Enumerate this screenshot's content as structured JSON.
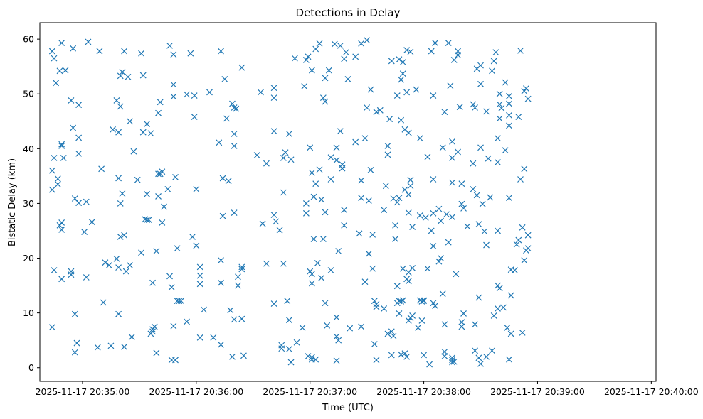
{
  "chart_data": {
    "type": "scatter",
    "title": "Detections in Delay",
    "xlabel": "Time (UTC)",
    "ylabel": "Bistatic Delay (km)",
    "x_ticks": [
      {
        "t": 0,
        "label": "2025-11-17 20:35:00"
      },
      {
        "t": 60,
        "label": "2025-11-17 20:36:00"
      },
      {
        "t": 120,
        "label": "2025-11-17 20:37:00"
      },
      {
        "t": 180,
        "label": "2025-11-17 20:38:00"
      },
      {
        "t": 240,
        "label": "2025-11-17 20:39:00"
      },
      {
        "t": 300,
        "label": "2025-11-17 20:40:00"
      }
    ],
    "y_ticks": [
      0,
      10,
      20,
      30,
      40,
      50,
      60
    ],
    "xlim": [
      -22.5,
      302.5
    ],
    "ylim": [
      -2.5,
      63
    ],
    "marker": "x",
    "color": "#1f77b4",
    "grid": false,
    "x_time_start": "2025-11-17 20:35:00",
    "points": [
      [
        -16,
        57.8
      ],
      [
        -15,
        56.5
      ],
      [
        -14,
        52
      ],
      [
        -12,
        54.2
      ],
      [
        -11,
        59.3
      ],
      [
        -9,
        54.3
      ],
      [
        -16,
        36
      ],
      [
        -15,
        38.3
      ],
      [
        -13,
        34.5
      ],
      [
        -13,
        33.5
      ],
      [
        -16,
        32.5
      ],
      [
        -12,
        26
      ],
      [
        -11,
        26.5
      ],
      [
        -11,
        25.2
      ],
      [
        -11,
        40.5
      ],
      [
        -11,
        40.8
      ],
      [
        -10,
        38.3
      ],
      [
        -15,
        17.8
      ],
      [
        -11,
        16.2
      ],
      [
        -16,
        7.4
      ],
      [
        -5,
        58.3
      ],
      [
        -6,
        48.8
      ],
      [
        -5,
        43.8
      ],
      [
        -2,
        48
      ],
      [
        -2,
        42
      ],
      [
        -2,
        39.1
      ],
      [
        -6,
        17.6
      ],
      [
        -6,
        17
      ],
      [
        -4,
        9.8
      ],
      [
        -3,
        4.5
      ],
      [
        -4,
        2.8
      ],
      [
        3,
        59.5
      ],
      [
        9,
        57.8
      ],
      [
        -4,
        30.9
      ],
      [
        -2,
        30.1
      ],
      [
        2,
        30.3
      ],
      [
        5,
        26.6
      ],
      [
        1,
        24.8
      ],
      [
        2,
        16.5
      ],
      [
        8,
        3.7
      ],
      [
        10,
        36.3
      ],
      [
        11,
        11.9
      ],
      [
        12,
        19.2
      ],
      [
        14,
        18.7
      ],
      [
        15,
        4
      ],
      [
        16,
        43.5
      ],
      [
        22,
        57.8
      ],
      [
        20,
        53.3
      ],
      [
        21,
        54
      ],
      [
        24,
        53.1
      ],
      [
        18,
        48.8
      ],
      [
        20,
        47.7
      ],
      [
        19,
        43
      ],
      [
        19,
        34.6
      ],
      [
        21,
        31.8
      ],
      [
        20,
        30
      ],
      [
        20,
        23.9
      ],
      [
        22,
        24.2
      ],
      [
        18,
        19.9
      ],
      [
        19,
        18.3
      ],
      [
        23,
        17.6
      ],
      [
        19,
        9.8
      ],
      [
        22,
        3.8
      ],
      [
        25,
        18.7
      ],
      [
        26,
        5.6
      ],
      [
        31,
        57.4
      ],
      [
        32,
        53.4
      ],
      [
        25,
        45
      ],
      [
        27,
        39.5
      ],
      [
        29,
        34.3
      ],
      [
        34,
        44.5
      ],
      [
        32,
        43
      ],
      [
        36,
        42.8
      ],
      [
        33,
        27.1
      ],
      [
        34,
        27
      ],
      [
        35,
        27
      ],
      [
        34,
        31.7
      ],
      [
        31,
        21
      ],
      [
        37,
        15.5
      ],
      [
        39,
        21.3
      ],
      [
        36,
        6.2
      ],
      [
        37,
        7
      ],
      [
        38,
        7.5
      ],
      [
        37,
        6.6
      ],
      [
        39,
        2.7
      ],
      [
        41,
        35.4
      ],
      [
        42,
        35.8
      ],
      [
        40,
        35.4
      ],
      [
        40,
        31.3
      ],
      [
        42,
        26.5
      ],
      [
        43,
        29.4
      ],
      [
        40,
        46.5
      ],
      [
        41,
        48.5
      ],
      [
        46,
        58.8
      ],
      [
        48,
        57.2
      ],
      [
        48,
        51.7
      ],
      [
        48,
        49.5
      ],
      [
        45,
        32.6
      ],
      [
        49,
        34.8
      ],
      [
        46,
        16.7
      ],
      [
        47,
        14.7
      ],
      [
        48,
        7.6
      ],
      [
        47,
        1.4
      ],
      [
        49,
        1.4
      ],
      [
        50,
        21.8
      ],
      [
        50,
        12.2
      ],
      [
        51,
        12.2
      ],
      [
        52,
        12.2
      ],
      [
        55,
        49.9
      ],
      [
        59,
        49.7
      ],
      [
        57,
        57.4
      ],
      [
        59,
        45.8
      ],
      [
        60,
        32.6
      ],
      [
        58,
        23.9
      ],
      [
        60,
        22.3
      ],
      [
        55,
        8.4
      ],
      [
        62,
        18.4
      ],
      [
        62,
        16.8
      ],
      [
        62,
        15.3
      ],
      [
        64,
        10.6
      ],
      [
        62,
        5.5
      ],
      [
        67,
        50.3
      ],
      [
        73,
        57.8
      ],
      [
        75,
        52.7
      ],
      [
        72,
        41.1
      ],
      [
        73,
        19.6
      ],
      [
        73,
        15.5
      ],
      [
        73,
        4.2
      ],
      [
        69,
        5.5
      ],
      [
        76,
        45.5
      ],
      [
        77,
        34.1
      ],
      [
        74,
        34.6
      ],
      [
        74,
        27.7
      ],
      [
        79,
        48.2
      ],
      [
        80,
        47.5
      ],
      [
        81,
        47.3
      ],
      [
        78,
        10.5
      ],
      [
        80,
        8.8
      ],
      [
        82,
        16.6
      ],
      [
        82,
        15
      ],
      [
        84,
        8.9
      ],
      [
        84,
        18.4
      ],
      [
        84,
        18
      ],
      [
        80,
        42.7
      ],
      [
        80,
        40.5
      ],
      [
        80,
        28.3
      ],
      [
        79,
        2
      ],
      [
        85,
        2.2
      ],
      [
        84,
        54.8
      ],
      [
        92,
        38.8
      ],
      [
        94,
        50.3
      ],
      [
        95,
        26.3
      ],
      [
        97,
        19
      ],
      [
        97,
        37.3
      ],
      [
        101,
        49.3
      ],
      [
        101,
        51.1
      ],
      [
        101,
        43.2
      ],
      [
        101,
        27.9
      ],
      [
        102,
        26.7
      ],
      [
        104,
        25.1
      ],
      [
        101,
        11.7
      ],
      [
        106,
        38.3
      ],
      [
        107,
        39.3
      ],
      [
        106,
        32
      ],
      [
        106,
        19
      ],
      [
        108,
        12.2
      ],
      [
        105,
        4.1
      ],
      [
        105,
        3.5
      ],
      [
        109,
        3.4
      ],
      [
        112,
        56.5
      ],
      [
        109,
        42.7
      ],
      [
        110,
        38
      ],
      [
        109,
        8.7
      ],
      [
        110,
        1
      ],
      [
        118,
        56.2
      ],
      [
        119,
        56.8
      ],
      [
        121,
        54.3
      ],
      [
        123,
        58.2
      ],
      [
        125,
        59.2
      ],
      [
        117,
        51.4
      ],
      [
        120,
        40.2
      ],
      [
        121,
        35.6
      ],
      [
        123,
        33.6
      ],
      [
        125,
        36.2
      ],
      [
        118,
        30
      ],
      [
        118,
        28.2
      ],
      [
        122,
        31.2
      ],
      [
        126,
        30.7
      ],
      [
        128,
        28.4
      ],
      [
        122,
        23.5
      ],
      [
        127,
        23.5
      ],
      [
        113,
        4.6
      ],
      [
        116,
        7.3
      ],
      [
        120,
        17.6
      ],
      [
        121,
        15.4
      ],
      [
        121,
        17.1
      ],
      [
        124,
        19.1
      ],
      [
        126,
        16.4
      ],
      [
        119,
        2.1
      ],
      [
        121,
        1.5
      ],
      [
        123,
        1.5
      ],
      [
        121,
        1.9
      ],
      [
        127,
        49.3
      ],
      [
        128,
        48.6
      ],
      [
        128,
        52.9
      ],
      [
        130,
        54.3
      ],
      [
        133,
        59.1
      ],
      [
        136,
        58.8
      ],
      [
        138,
        56.4
      ],
      [
        139,
        57.6
      ],
      [
        131,
        38.4
      ],
      [
        131,
        34.4
      ],
      [
        134,
        40.2
      ],
      [
        134,
        37.9
      ],
      [
        136,
        43.2
      ],
      [
        137,
        36.4
      ],
      [
        137,
        37.1
      ],
      [
        138,
        28.8
      ],
      [
        138,
        26
      ],
      [
        131,
        17.8
      ],
      [
        135,
        21.3
      ],
      [
        128,
        11.8
      ],
      [
        129,
        7.7
      ],
      [
        134,
        9.2
      ],
      [
        134,
        5.7
      ],
      [
        135,
        5
      ],
      [
        134,
        1.3
      ],
      [
        140,
        52.7
      ],
      [
        144,
        56.8
      ],
      [
        147,
        59.2
      ],
      [
        150,
        59.8
      ],
      [
        144,
        41.2
      ],
      [
        149,
        41.9
      ],
      [
        150,
        47.5
      ],
      [
        152,
        50.8
      ],
      [
        147,
        34.2
      ],
      [
        147,
        31
      ],
      [
        151,
        30.5
      ],
      [
        152,
        36.1
      ],
      [
        146,
        24.5
      ],
      [
        151,
        20.8
      ],
      [
        153,
        24.3
      ],
      [
        149,
        15.7
      ],
      [
        153,
        18.1
      ],
      [
        154,
        12.2
      ],
      [
        155,
        11.1
      ],
      [
        155,
        11.6
      ],
      [
        154,
        4.3
      ],
      [
        155,
        1.4
      ],
      [
        147,
        7.5
      ],
      [
        141,
        7.2
      ],
      [
        155,
        46.7
      ],
      [
        157,
        47
      ],
      [
        160,
        33.2
      ],
      [
        159,
        28.8
      ],
      [
        161,
        40.5
      ],
      [
        161,
        38.9
      ],
      [
        162,
        45.4
      ],
      [
        159,
        10.8
      ],
      [
        161,
        6.2
      ],
      [
        163,
        6.6
      ],
      [
        163,
        2.3
      ],
      [
        164,
        5.8
      ],
      [
        164,
        30.9
      ],
      [
        163,
        56
      ],
      [
        167,
        56.3
      ],
      [
        169,
        55.8
      ],
      [
        166,
        49.7
      ],
      [
        169,
        53.7
      ],
      [
        168,
        52.6
      ],
      [
        168,
        45.2
      ],
      [
        167,
        31
      ],
      [
        166,
        30.2
      ],
      [
        165,
        26
      ],
      [
        165,
        23.5
      ],
      [
        166,
        14.9
      ],
      [
        166,
        11.8
      ],
      [
        167,
        12.2
      ],
      [
        167,
        9.9
      ],
      [
        168,
        12.1
      ],
      [
        169,
        12.3
      ],
      [
        168,
        2.4
      ],
      [
        171,
        58
      ],
      [
        173,
        57.7
      ],
      [
        171,
        50.3
      ],
      [
        170,
        43.5
      ],
      [
        172,
        42.9
      ],
      [
        170,
        32.5
      ],
      [
        172,
        31.6
      ],
      [
        172,
        28.3
      ],
      [
        173,
        33.2
      ],
      [
        173,
        34.3
      ],
      [
        172,
        17.4
      ],
      [
        169,
        18.1
      ],
      [
        171,
        16.2
      ],
      [
        174,
        25.7
      ],
      [
        174,
        18.2
      ],
      [
        172,
        15.8
      ],
      [
        172,
        8.6
      ],
      [
        174,
        9.5
      ],
      [
        173,
        9.1
      ],
      [
        170,
        2.6
      ],
      [
        171,
        2
      ],
      [
        176,
        50.8
      ],
      [
        178,
        41.9
      ],
      [
        178,
        27.8
      ],
      [
        178,
        12.3
      ],
      [
        179,
        12.1
      ],
      [
        180,
        12.3
      ],
      [
        180,
        12.2
      ],
      [
        177,
        7.3
      ],
      [
        179,
        8.6
      ],
      [
        180,
        2.3
      ],
      [
        181,
        27.4
      ],
      [
        182,
        38.5
      ],
      [
        182,
        18.1
      ],
      [
        184,
        57.8
      ],
      [
        185,
        49.7
      ],
      [
        186,
        59.3
      ],
      [
        185,
        34.4
      ],
      [
        185,
        28.2
      ],
      [
        184,
        25
      ],
      [
        185,
        22.2
      ],
      [
        185,
        11.8
      ],
      [
        186,
        11.3
      ],
      [
        183,
        0.6
      ],
      [
        190,
        40.2
      ],
      [
        189,
        26.8
      ],
      [
        188,
        29
      ],
      [
        188,
        19.4
      ],
      [
        189,
        20
      ],
      [
        190,
        13.5
      ],
      [
        191,
        7.9
      ],
      [
        191,
        2.9
      ],
      [
        191,
        2.1
      ],
      [
        191,
        46.7
      ],
      [
        193,
        22.9
      ],
      [
        193,
        59.3
      ],
      [
        194,
        51.5
      ],
      [
        196,
        56.2
      ],
      [
        198,
        57.1
      ],
      [
        198,
        57.8
      ],
      [
        195,
        41.3
      ],
      [
        195,
        38.3
      ],
      [
        198,
        39.4
      ],
      [
        195,
        33.8
      ],
      [
        195,
        27.5
      ],
      [
        192,
        28
      ],
      [
        197,
        17.1
      ],
      [
        199,
        47.6
      ],
      [
        195,
        1.8
      ],
      [
        195,
        1
      ],
      [
        196,
        1.1
      ],
      [
        195,
        1.4
      ],
      [
        200,
        33.6
      ],
      [
        200,
        29.9
      ],
      [
        201,
        29.1
      ],
      [
        201,
        9.9
      ],
      [
        200,
        8.3
      ],
      [
        200,
        7.5
      ],
      [
        203,
        25.8
      ],
      [
        206,
        48.1
      ],
      [
        207,
        47.5
      ],
      [
        206,
        37.3
      ],
      [
        206,
        32.6
      ],
      [
        208,
        31.5
      ],
      [
        209,
        26.2
      ],
      [
        212,
        24.9
      ],
      [
        207,
        7.9
      ],
      [
        207,
        3.1
      ],
      [
        209,
        1.8
      ],
      [
        210,
        0.7
      ],
      [
        211,
        29.9
      ],
      [
        208,
        54.6
      ],
      [
        210,
        55.2
      ],
      [
        210,
        51.8
      ],
      [
        210,
        40.2
      ],
      [
        213,
        46.8
      ],
      [
        214,
        38.2
      ],
      [
        215,
        31.1
      ],
      [
        213,
        22.4
      ],
      [
        209,
        12.8
      ],
      [
        213,
        2
      ],
      [
        216,
        3.1
      ],
      [
        216,
        54.2
      ],
      [
        217,
        56
      ],
      [
        218,
        57.6
      ],
      [
        219,
        41.9
      ],
      [
        219,
        37.5
      ],
      [
        220,
        50
      ],
      [
        220,
        48.1
      ],
      [
        221,
        47.4
      ],
      [
        220,
        45.5
      ],
      [
        217,
        9.5
      ],
      [
        219,
        10.8
      ],
      [
        219,
        25
      ],
      [
        219,
        15
      ],
      [
        220,
        14.5
      ],
      [
        222,
        11
      ],
      [
        223,
        39.7
      ],
      [
        223,
        52.1
      ],
      [
        225,
        46.1
      ],
      [
        225,
        48.2
      ],
      [
        225,
        49.6
      ],
      [
        225,
        44.2
      ],
      [
        225,
        31
      ],
      [
        224,
        7.3
      ],
      [
        225,
        1.5
      ],
      [
        226,
        13.2
      ],
      [
        226,
        6.2
      ],
      [
        226,
        17.9
      ],
      [
        228,
        17.8
      ],
      [
        229,
        22.5
      ],
      [
        230,
        23.3
      ],
      [
        231,
        34.4
      ],
      [
        232,
        25.6
      ],
      [
        230,
        45.8
      ],
      [
        231,
        57.9
      ],
      [
        232,
        6.4
      ],
      [
        233,
        19.6
      ],
      [
        233,
        50.5
      ],
      [
        234,
        51
      ],
      [
        235,
        49.1
      ],
      [
        233,
        36.3
      ],
      [
        234,
        21.4
      ],
      [
        235,
        24.2
      ],
      [
        235,
        21.8
      ]
    ]
  }
}
